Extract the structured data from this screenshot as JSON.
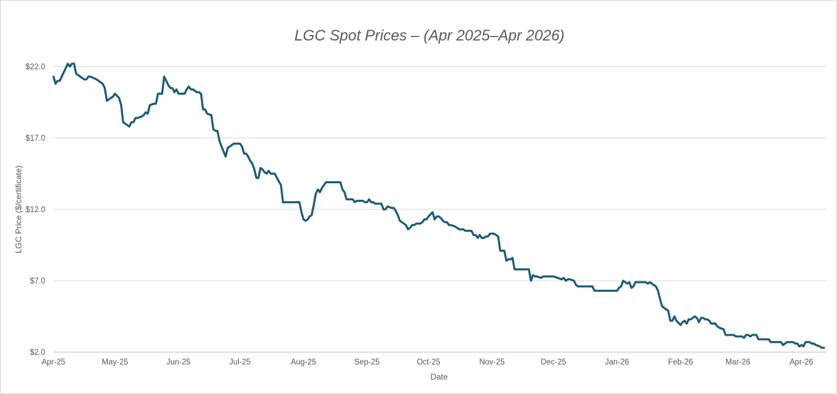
{
  "chart_data": {
    "type": "line",
    "title": "LGC Spot Prices – (Apr 2025–Apr 2026)",
    "xlabel": "Date",
    "ylabel": "LGC Price ($/certificate)",
    "ylim": [
      2,
      22
    ],
    "yticks": [
      2,
      7,
      12,
      17,
      22
    ],
    "ytick_labels": [
      "$2.0",
      "$7.0",
      "$12.0",
      "$17.0",
      "$22.0"
    ],
    "xlim": [
      "2025-04-01",
      "2026-04-13"
    ],
    "xticks": [
      "2025-04-01",
      "2025-05-01",
      "2025-06-01",
      "2025-07-01",
      "2025-08-01",
      "2025-09-01",
      "2025-10-01",
      "2025-11-01",
      "2025-12-01",
      "2026-01-01",
      "2026-02-01",
      "2026-03-01",
      "2026-04-01"
    ],
    "xtick_labels": [
      "Apr-25",
      "May-25",
      "Jun-25",
      "Jul-25",
      "Aug-25",
      "Sep-25",
      "Oct-25",
      "Nov-25",
      "Dec-25",
      "Jan-26",
      "Feb-26",
      "Mar-26",
      "Apr-26"
    ],
    "grid": "horizontal",
    "legend": "none",
    "color": "#1b5b78",
    "series": [
      {
        "points": [
          [
            "2025-04-01",
            21.3
          ],
          [
            "2025-04-02",
            20.8
          ],
          [
            "2025-04-03",
            21.0
          ],
          [
            "2025-04-04",
            21.0
          ],
          [
            "2025-04-06",
            21.6
          ],
          [
            "2025-04-07",
            21.9
          ],
          [
            "2025-04-08",
            22.2
          ],
          [
            "2025-04-09",
            22.0
          ],
          [
            "2025-04-10",
            22.2
          ],
          [
            "2025-04-11",
            22.2
          ],
          [
            "2025-04-12",
            21.5
          ],
          [
            "2025-04-15",
            21.2
          ],
          [
            "2025-04-16",
            21.1
          ],
          [
            "2025-04-17",
            21.1
          ],
          [
            "2025-04-18",
            21.3
          ],
          [
            "2025-04-19",
            21.3
          ],
          [
            "2025-04-22",
            21.1
          ],
          [
            "2025-04-24",
            20.9
          ],
          [
            "2025-04-25",
            20.8
          ],
          [
            "2025-04-26",
            20.5
          ],
          [
            "2025-04-27",
            19.6
          ],
          [
            "2025-04-28",
            19.7
          ],
          [
            "2025-04-30",
            19.9
          ],
          [
            "2025-05-01",
            20.1
          ],
          [
            "2025-05-03",
            19.8
          ],
          [
            "2025-05-04",
            19.3
          ],
          [
            "2025-05-05",
            18.1
          ],
          [
            "2025-05-07",
            17.9
          ],
          [
            "2025-05-08",
            17.8
          ],
          [
            "2025-05-09",
            18.1
          ],
          [
            "2025-05-10",
            18.1
          ],
          [
            "2025-05-11",
            18.4
          ],
          [
            "2025-05-12",
            18.4
          ],
          [
            "2025-05-14",
            18.5
          ],
          [
            "2025-05-15",
            18.6
          ],
          [
            "2025-05-16",
            18.8
          ],
          [
            "2025-05-17",
            18.7
          ],
          [
            "2025-05-18",
            19.3
          ],
          [
            "2025-05-20",
            19.4
          ],
          [
            "2025-05-21",
            19.4
          ],
          [
            "2025-05-22",
            20.1
          ],
          [
            "2025-05-24",
            20.1
          ],
          [
            "2025-05-25",
            21.3
          ],
          [
            "2025-05-26",
            21.0
          ],
          [
            "2025-05-27",
            20.7
          ],
          [
            "2025-05-28",
            20.5
          ],
          [
            "2025-05-29",
            20.5
          ],
          [
            "2025-05-30",
            20.2
          ],
          [
            "2025-05-31",
            20.4
          ],
          [
            "2025-06-01",
            20.1
          ],
          [
            "2025-06-04",
            20.1
          ],
          [
            "2025-06-05",
            20.4
          ],
          [
            "2025-06-06",
            20.6
          ],
          [
            "2025-06-07",
            20.4
          ],
          [
            "2025-06-08",
            20.4
          ],
          [
            "2025-06-10",
            20.2
          ],
          [
            "2025-06-11",
            20.2
          ],
          [
            "2025-06-12",
            20.1
          ],
          [
            "2025-06-13",
            19.0
          ],
          [
            "2025-06-14",
            19.0
          ],
          [
            "2025-06-15",
            18.7
          ],
          [
            "2025-06-17",
            18.6
          ],
          [
            "2025-06-18",
            17.6
          ],
          [
            "2025-06-19",
            17.5
          ],
          [
            "2025-06-20",
            17.5
          ],
          [
            "2025-06-21",
            16.8
          ],
          [
            "2025-06-22",
            16.4
          ],
          [
            "2025-06-24",
            15.7
          ],
          [
            "2025-06-25",
            16.3
          ],
          [
            "2025-06-27",
            16.5
          ],
          [
            "2025-06-28",
            16.6
          ],
          [
            "2025-07-01",
            16.6
          ],
          [
            "2025-07-02",
            16.4
          ],
          [
            "2025-07-03",
            15.9
          ],
          [
            "2025-07-04",
            15.9
          ],
          [
            "2025-07-05",
            15.7
          ],
          [
            "2025-07-06",
            15.4
          ],
          [
            "2025-07-07",
            15.2
          ],
          [
            "2025-07-08",
            14.8
          ],
          [
            "2025-07-09",
            14.2
          ],
          [
            "2025-07-10",
            14.2
          ],
          [
            "2025-07-11",
            14.9
          ],
          [
            "2025-07-12",
            14.8
          ],
          [
            "2025-07-13",
            14.6
          ],
          [
            "2025-07-14",
            14.5
          ],
          [
            "2025-07-15",
            14.7
          ],
          [
            "2025-07-16",
            14.5
          ],
          [
            "2025-07-18",
            14.5
          ],
          [
            "2025-07-19",
            14.2
          ],
          [
            "2025-07-21",
            13.7
          ],
          [
            "2025-07-22",
            12.5
          ],
          [
            "2025-07-30",
            12.5
          ],
          [
            "2025-07-31",
            11.8
          ],
          [
            "2025-08-01",
            11.3
          ],
          [
            "2025-08-02",
            11.2
          ],
          [
            "2025-08-03",
            11.3
          ],
          [
            "2025-08-04",
            11.5
          ],
          [
            "2025-08-05",
            11.6
          ],
          [
            "2025-08-06",
            12.3
          ],
          [
            "2025-08-07",
            13.1
          ],
          [
            "2025-08-08",
            13.4
          ],
          [
            "2025-08-09",
            13.2
          ],
          [
            "2025-08-10",
            13.5
          ],
          [
            "2025-08-11",
            13.7
          ],
          [
            "2025-08-12",
            13.9
          ],
          [
            "2025-08-19",
            13.9
          ],
          [
            "2025-08-20",
            13.4
          ],
          [
            "2025-08-21",
            13.2
          ],
          [
            "2025-08-22",
            12.7
          ],
          [
            "2025-08-25",
            12.7
          ],
          [
            "2025-08-26",
            12.5
          ],
          [
            "2025-08-27",
            12.6
          ],
          [
            "2025-08-28",
            12.6
          ],
          [
            "2025-08-30",
            12.6
          ],
          [
            "2025-08-31",
            12.5
          ],
          [
            "2025-09-01",
            12.5
          ],
          [
            "2025-09-02",
            12.7
          ],
          [
            "2025-09-03",
            12.5
          ],
          [
            "2025-09-04",
            12.5
          ],
          [
            "2025-09-05",
            12.4
          ],
          [
            "2025-09-08",
            12.4
          ],
          [
            "2025-09-09",
            12.0
          ],
          [
            "2025-09-10",
            12.0
          ],
          [
            "2025-09-11",
            12.2
          ],
          [
            "2025-09-13",
            12.1
          ],
          [
            "2025-09-14",
            12.1
          ],
          [
            "2025-09-15",
            11.9
          ],
          [
            "2025-09-16",
            11.6
          ],
          [
            "2025-09-17",
            11.2
          ],
          [
            "2025-09-18",
            11.1
          ],
          [
            "2025-09-19",
            11.0
          ],
          [
            "2025-09-20",
            10.9
          ],
          [
            "2025-09-21",
            10.6
          ],
          [
            "2025-09-22",
            10.7
          ],
          [
            "2025-09-23",
            10.9
          ],
          [
            "2025-09-24",
            10.9
          ],
          [
            "2025-09-25",
            11.0
          ],
          [
            "2025-09-27",
            11.0
          ],
          [
            "2025-09-28",
            11.1
          ],
          [
            "2025-09-29",
            11.3
          ],
          [
            "2025-09-30",
            11.3
          ],
          [
            "2025-10-01",
            11.5
          ],
          [
            "2025-10-03",
            11.8
          ],
          [
            "2025-10-04",
            11.3
          ],
          [
            "2025-10-05",
            11.5
          ],
          [
            "2025-10-06",
            11.5
          ],
          [
            "2025-10-07",
            11.4
          ],
          [
            "2025-10-08",
            11.2
          ],
          [
            "2025-10-09",
            11.1
          ],
          [
            "2025-10-10",
            11.1
          ],
          [
            "2025-10-11",
            10.9
          ],
          [
            "2025-10-12",
            10.9
          ],
          [
            "2025-10-14",
            10.8
          ],
          [
            "2025-10-15",
            10.7
          ],
          [
            "2025-10-16",
            10.6
          ],
          [
            "2025-10-18",
            10.6
          ],
          [
            "2025-10-19",
            10.5
          ],
          [
            "2025-10-22",
            10.5
          ],
          [
            "2025-10-23",
            10.2
          ],
          [
            "2025-10-24",
            10.2
          ],
          [
            "2025-10-25",
            10.0
          ],
          [
            "2025-10-26",
            10.2
          ],
          [
            "2025-10-27",
            10.0
          ],
          [
            "2025-10-28",
            10.0
          ],
          [
            "2025-10-29",
            10.1
          ],
          [
            "2025-10-30",
            10.1
          ],
          [
            "2025-10-31",
            10.3
          ],
          [
            "2025-11-01",
            10.3
          ],
          [
            "2025-11-02",
            10.3
          ],
          [
            "2025-11-03",
            10.2
          ],
          [
            "2025-11-04",
            10.1
          ],
          [
            "2025-11-05",
            9.1
          ],
          [
            "2025-11-07",
            9.1
          ],
          [
            "2025-11-08",
            8.4
          ],
          [
            "2025-11-09",
            8.5
          ],
          [
            "2025-11-10",
            8.5
          ],
          [
            "2025-11-11",
            8.6
          ],
          [
            "2025-11-12",
            7.8
          ],
          [
            "2025-11-19",
            7.8
          ],
          [
            "2025-11-20",
            7.0
          ],
          [
            "2025-11-21",
            7.4
          ],
          [
            "2025-11-22",
            7.3
          ],
          [
            "2025-11-23",
            7.3
          ],
          [
            "2025-11-25",
            7.2
          ],
          [
            "2025-11-26",
            7.3
          ],
          [
            "2025-11-30",
            7.3
          ],
          [
            "2025-12-01",
            7.3
          ],
          [
            "2025-12-03",
            7.2
          ],
          [
            "2025-12-05",
            7.1
          ],
          [
            "2025-12-06",
            7.2
          ],
          [
            "2025-12-07",
            7.0
          ],
          [
            "2025-12-08",
            7.1
          ],
          [
            "2025-12-09",
            7.1
          ],
          [
            "2025-12-11",
            7.0
          ],
          [
            "2025-12-12",
            6.7
          ],
          [
            "2025-12-13",
            6.6
          ],
          [
            "2025-12-20",
            6.6
          ],
          [
            "2025-12-21",
            6.3
          ],
          [
            "2026-01-01",
            6.3
          ],
          [
            "2026-01-02",
            6.5
          ],
          [
            "2026-01-03",
            6.6
          ],
          [
            "2026-01-04",
            7.0
          ],
          [
            "2026-01-05",
            6.9
          ],
          [
            "2026-01-06",
            6.8
          ],
          [
            "2026-01-07",
            6.9
          ],
          [
            "2026-01-08",
            6.5
          ],
          [
            "2026-01-09",
            6.6
          ],
          [
            "2026-01-10",
            6.9
          ],
          [
            "2026-01-12",
            6.9
          ],
          [
            "2026-01-15",
            6.9
          ],
          [
            "2026-01-16",
            6.8
          ],
          [
            "2026-01-17",
            6.9
          ],
          [
            "2026-01-18",
            6.8
          ],
          [
            "2026-01-19",
            6.7
          ],
          [
            "2026-01-20",
            6.6
          ],
          [
            "2026-01-21",
            6.3
          ],
          [
            "2026-01-22",
            5.7
          ],
          [
            "2026-01-23",
            5.2
          ],
          [
            "2026-01-24",
            5.1
          ],
          [
            "2026-01-25",
            5.0
          ],
          [
            "2026-01-26",
            4.9
          ],
          [
            "2026-01-27",
            4.2
          ],
          [
            "2026-01-28",
            4.2
          ],
          [
            "2026-01-29",
            4.5
          ],
          [
            "2026-01-30",
            4.2
          ],
          [
            "2026-02-01",
            3.9
          ],
          [
            "2026-02-02",
            4.1
          ],
          [
            "2026-02-03",
            4.2
          ],
          [
            "2026-02-04",
            4.0
          ],
          [
            "2026-02-05",
            4.3
          ],
          [
            "2026-02-06",
            4.3
          ],
          [
            "2026-02-08",
            4.5
          ],
          [
            "2026-02-09",
            4.4
          ],
          [
            "2026-02-10",
            4.1
          ],
          [
            "2026-02-11",
            4.4
          ],
          [
            "2026-02-12",
            4.4
          ],
          [
            "2026-02-13",
            4.3
          ],
          [
            "2026-02-14",
            4.3
          ],
          [
            "2026-02-15",
            4.2
          ],
          [
            "2026-02-16",
            4.0
          ],
          [
            "2026-02-18",
            4.0
          ],
          [
            "2026-02-19",
            3.8
          ],
          [
            "2026-02-20",
            3.7
          ],
          [
            "2026-02-22",
            3.6
          ],
          [
            "2026-02-23",
            3.2
          ],
          [
            "2026-02-27",
            3.2
          ],
          [
            "2026-02-28",
            3.1
          ],
          [
            "2026-03-03",
            3.1
          ],
          [
            "2026-03-04",
            3.0
          ],
          [
            "2026-03-05",
            3.2
          ],
          [
            "2026-03-06",
            3.2
          ],
          [
            "2026-03-07",
            3.1
          ],
          [
            "2026-03-08",
            3.2
          ],
          [
            "2026-03-10",
            3.2
          ],
          [
            "2026-03-11",
            2.9
          ],
          [
            "2026-03-16",
            2.9
          ],
          [
            "2026-03-17",
            2.7
          ],
          [
            "2026-03-22",
            2.7
          ],
          [
            "2026-03-23",
            2.5
          ],
          [
            "2026-03-24",
            2.6
          ],
          [
            "2026-03-25",
            2.7
          ],
          [
            "2026-03-26",
            2.7
          ],
          [
            "2026-03-28",
            2.7
          ],
          [
            "2026-03-29",
            2.6
          ],
          [
            "2026-03-30",
            2.6
          ],
          [
            "2026-03-31",
            2.4
          ],
          [
            "2026-04-01",
            2.5
          ],
          [
            "2026-04-02",
            2.4
          ],
          [
            "2026-04-03",
            2.7
          ],
          [
            "2026-04-04",
            2.7
          ],
          [
            "2026-04-05",
            2.7
          ],
          [
            "2026-04-06",
            2.6
          ],
          [
            "2026-04-07",
            2.6
          ],
          [
            "2026-04-08",
            2.5
          ],
          [
            "2026-04-10",
            2.4
          ],
          [
            "2026-04-11",
            2.3
          ],
          [
            "2026-04-12",
            2.3
          ]
        ]
      }
    ]
  }
}
